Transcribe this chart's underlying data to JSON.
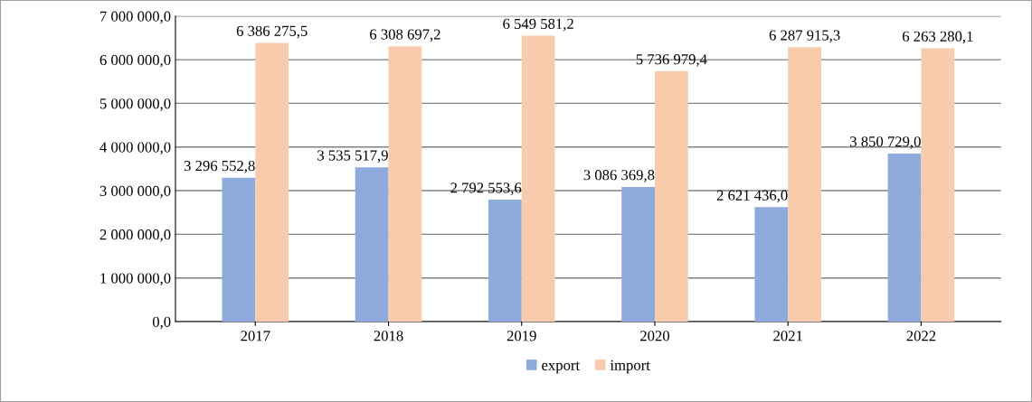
{
  "chart_data": {
    "type": "bar",
    "categories": [
      "2017",
      "2018",
      "2019",
      "2020",
      "2021",
      "2022"
    ],
    "series": [
      {
        "name": "export",
        "color": "#8faadc",
        "values": [
          3296552.8,
          3535517.9,
          2792553.6,
          3086369.8,
          2621436.0,
          3850729.0
        ],
        "value_labels": [
          "3 296 552,8",
          "3 535 517,9",
          "2 792 553,6",
          "3 086 369,8",
          "2 621 436,0",
          "3 850 729,0"
        ]
      },
      {
        "name": "import",
        "color": "#f8cbad",
        "values": [
          6386275.5,
          6308697.2,
          6549581.2,
          5736979.4,
          6287915.3,
          6263280.1
        ],
        "value_labels": [
          "6 386 275,5",
          "6 308 697,2",
          "6 549 581,2",
          "5 736 979,4",
          "6 287 915,3",
          "6 263 280,1"
        ]
      }
    ],
    "ylim": [
      0,
      7000000
    ],
    "yticks": [
      {
        "value": 0,
        "label": "0,0"
      },
      {
        "value": 1000000,
        "label": "1 000 000,0"
      },
      {
        "value": 2000000,
        "label": "2 000 000,0"
      },
      {
        "value": 3000000,
        "label": "3 000 000,0"
      },
      {
        "value": 4000000,
        "label": "4 000 000,0"
      },
      {
        "value": 5000000,
        "label": "5 000 000,0"
      },
      {
        "value": 6000000,
        "label": "6 000 000,0"
      },
      {
        "value": 7000000,
        "label": "7 000 000,0"
      }
    ],
    "grid": "y",
    "legend": "bottom"
  }
}
